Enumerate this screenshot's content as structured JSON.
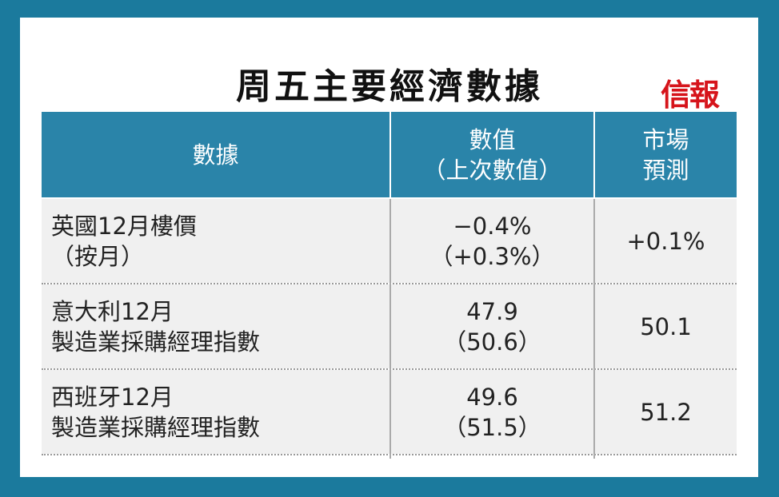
{
  "header": {
    "title": "周五主要經濟數據",
    "logo": "信報"
  },
  "table": {
    "columns": [
      [
        "數據"
      ],
      [
        "數值",
        "（上次數值）"
      ],
      [
        "市場",
        "預測"
      ]
    ],
    "rows": [
      [
        [
          "英國12月樓價",
          "（按月）"
        ],
        [
          "−0.4%",
          "（+0.3%）"
        ],
        [
          "+0.1%"
        ]
      ],
      [
        [
          "意大利12月",
          "製造業採購經理指數"
        ],
        [
          "47.9",
          "（50.6）"
        ],
        [
          "50.1"
        ]
      ],
      [
        [
          "西班牙12月",
          "製造業採購經理指數"
        ],
        [
          "49.6",
          "（51.5）"
        ],
        [
          "51.2"
        ]
      ]
    ]
  }
}
